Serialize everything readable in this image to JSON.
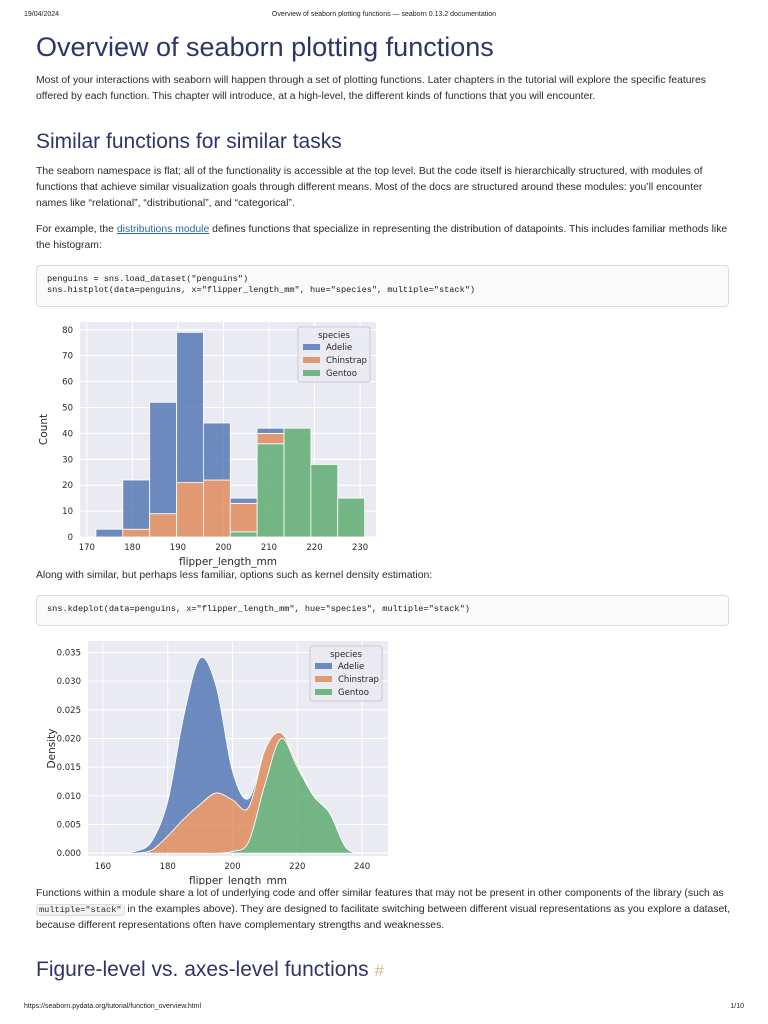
{
  "header": {
    "date": "19/04/2024",
    "title": "Overview of seaborn plotting functions — seaborn 0.13.2 documentation"
  },
  "footer": {
    "url": "https://seaborn.pydata.org/tutorial/function_overview.html",
    "page": "1/10"
  },
  "h1": "Overview of seaborn plotting functions",
  "intro": "Most of your interactions with seaborn will happen through a set of plotting functions. Later chapters in the tutorial will explore the specific features offered by each function. This chapter will introduce, at a high-level, the different kinds of functions that you will encounter.",
  "section1": {
    "heading": "Similar functions for similar tasks",
    "p1": "The seaborn namespace is flat; all of the functionality is accessible at the top level. But the code itself is hierarchically structured, with modules of functions that achieve similar visualization goals through different means. Most of the docs are structured around these modules: you’ll encounter names like “relational”, “distributional”, and “categorical”.",
    "p2": {
      "before": "For example, the ",
      "link": "distributions module",
      "after": " defines functions that specialize in representing the distribution of datapoints. This includes familiar methods like the histogram:"
    },
    "code1": [
      "penguins = sns.load_dataset(\"penguins\")",
      "sns.histplot(data=penguins, x=\"flipper_length_mm\", hue=\"species\", multiple=\"stack\")"
    ],
    "p3": "Along with similar, but perhaps less familiar, options such as kernel density estimation:",
    "code2": [
      "sns.kdeplot(data=penguins, x=\"flipper_length_mm\", hue=\"species\", multiple=\"stack\")"
    ],
    "p4": {
      "before": "Functions within a module share a lot of underlying code and offer similar features that may not be present in other components of the library (such as ",
      "code": "multiple=\"stack\"",
      "after": " in the examples above). They are designed to facilitate switching between different visual representations as you explore a dataset, because different representations often have complementary strengths and weaknesses."
    }
  },
  "section2": {
    "heading": "Figure-level vs. axes-level functions",
    "anchor": "#"
  },
  "chart_data": [
    {
      "type": "histogram",
      "xlabel": "flipper_length_mm",
      "ylabel": "Count",
      "bins": [
        172.0,
        177.9,
        183.8,
        189.7,
        195.6,
        201.5,
        207.4,
        213.3,
        219.2,
        225.1,
        231.0
      ],
      "legend_title": "species",
      "legend": "upper right",
      "grid": true,
      "stacked": true,
      "series": [
        {
          "name": "Adelie",
          "color": "#4c72b0",
          "values": [
            3,
            19,
            43,
            58,
            22,
            2,
            2,
            0,
            0,
            0
          ]
        },
        {
          "name": "Chinstrap",
          "color": "#dd8452",
          "values": [
            0,
            3,
            9,
            21,
            22,
            11,
            4,
            0,
            0,
            0
          ]
        },
        {
          "name": "Gentoo",
          "color": "#55a868",
          "values": [
            0,
            0,
            0,
            0,
            0,
            2,
            36,
            42,
            28,
            15
          ]
        }
      ],
      "xlim": [
        168.5,
        233.5
      ],
      "xticks": [
        170,
        180,
        190,
        200,
        210,
        220,
        230
      ],
      "ylim": [
        0,
        83
      ],
      "yticks": [
        0,
        10,
        20,
        30,
        40,
        50,
        60,
        70,
        80
      ]
    },
    {
      "type": "area",
      "xlabel": "flipper_length_mm",
      "ylabel": "Density",
      "x": [
        165,
        170,
        175,
        180,
        185,
        190,
        195,
        200,
        205,
        210,
        215,
        220,
        225,
        230,
        235,
        240
      ],
      "legend_title": "species",
      "legend": "upper right",
      "grid": true,
      "stacked": true,
      "series": [
        {
          "name": "Adelie",
          "color": "#4c72b0",
          "values": [
            0,
            0.0003,
            0.0015,
            0.006,
            0.018,
            0.0255,
            0.0185,
            0.005,
            0.0015,
            0.0002,
            0,
            0,
            0,
            0,
            0,
            0
          ]
        },
        {
          "name": "Chinstrap",
          "color": "#dd8452",
          "values": [
            0,
            0,
            0.0005,
            0.003,
            0.006,
            0.0085,
            0.0105,
            0.009,
            0.006,
            0.006,
            0.001,
            0.0005,
            0,
            0,
            0,
            0
          ]
        },
        {
          "name": "Gentoo",
          "color": "#55a868",
          "values": [
            0,
            0,
            0,
            0,
            0,
            0,
            0,
            0.0003,
            0.002,
            0.012,
            0.02,
            0.015,
            0.01,
            0.007,
            0.001,
            0
          ]
        }
      ],
      "xlim": [
        155.4,
        248
      ],
      "xticks": [
        160,
        180,
        200,
        220,
        240
      ],
      "ylim": [
        -0.0005,
        0.037
      ],
      "yticks": [
        {
          "value": 0,
          "label": "0.000"
        },
        {
          "value": 0.005,
          "label": "0.005"
        },
        {
          "value": 0.01,
          "label": "0.010"
        },
        {
          "value": 0.015,
          "label": "0.015"
        },
        {
          "value": 0.02,
          "label": "0.020"
        },
        {
          "value": 0.025,
          "label": "0.025"
        },
        {
          "value": 0.03,
          "label": "0.030"
        },
        {
          "value": 0.035,
          "label": "0.035"
        }
      ]
    }
  ]
}
